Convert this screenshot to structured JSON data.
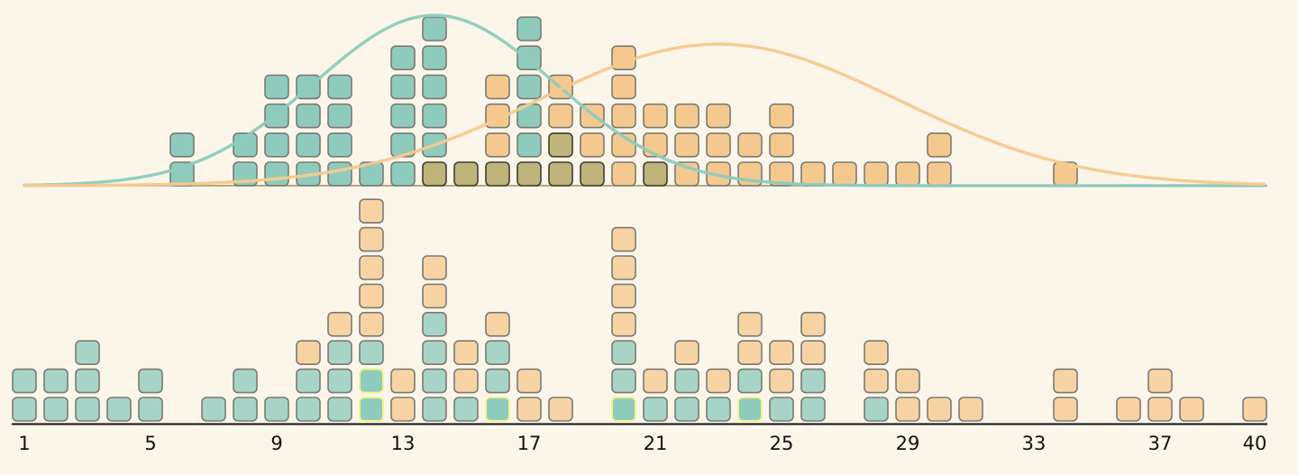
{
  "colors": {
    "background": "#fcf6ea",
    "teal": "#8ecbbd",
    "orange": "#f5c98e",
    "overlap": "#bfb57a",
    "teal_light": "#a7d4c6",
    "orange_light": "#f7d3a4",
    "highlight_stroke": "#f5f28c",
    "stroke": "#7a7a72",
    "overlap_stroke": "#3e3d33",
    "baseline_top": "#b4a87c",
    "axis": "#111111"
  },
  "chart_data": [
    {
      "type": "dot-histogram",
      "panel": "top",
      "x_range": [
        1,
        40
      ],
      "series": [
        {
          "color": "#8ecbbd",
          "counts": [
            [
              6,
              2
            ],
            [
              8,
              2
            ],
            [
              9,
              4
            ],
            [
              10,
              4
            ],
            [
              11,
              4
            ],
            [
              12,
              1
            ],
            [
              13,
              5
            ],
            [
              14,
              6
            ],
            [
              15,
              1
            ],
            [
              16,
              1
            ],
            [
              17,
              6
            ],
            [
              18,
              2
            ],
            [
              19,
              1
            ],
            [
              21,
              1
            ]
          ],
          "curve": {
            "mean": 14,
            "sd": 3.8
          }
        },
        {
          "color": "#f5c98e",
          "counts": [
            [
              14,
              1
            ],
            [
              15,
              1
            ],
            [
              16,
              4
            ],
            [
              17,
              1
            ],
            [
              18,
              4
            ],
            [
              19,
              3
            ],
            [
              20,
              5
            ],
            [
              21,
              3
            ],
            [
              22,
              3
            ],
            [
              23,
              3
            ],
            [
              24,
              2
            ],
            [
              25,
              3
            ],
            [
              26,
              1
            ],
            [
              27,
              1
            ],
            [
              28,
              1
            ],
            [
              29,
              1
            ],
            [
              30,
              2
            ],
            [
              34,
              1
            ]
          ],
          "curve": {
            "mean": 23,
            "sd": 5.7
          }
        }
      ]
    },
    {
      "type": "dot-histogram",
      "panel": "bottom",
      "x_range": [
        1,
        40
      ],
      "ticks": [
        1,
        5,
        9,
        13,
        17,
        21,
        25,
        29,
        33,
        37,
        40
      ],
      "columns": [
        [
          1,
          [
            "t",
            "t"
          ]
        ],
        [
          2,
          [
            "t",
            "t"
          ]
        ],
        [
          3,
          [
            "t",
            "t",
            "t"
          ]
        ],
        [
          4,
          [
            "t"
          ]
        ],
        [
          5,
          [
            "t",
            "t"
          ]
        ],
        [
          7,
          [
            "t"
          ]
        ],
        [
          8,
          [
            "t",
            "t"
          ]
        ],
        [
          9,
          [
            "t"
          ]
        ],
        [
          10,
          [
            "t",
            "t",
            "o"
          ]
        ],
        [
          11,
          [
            "t",
            "t",
            "t",
            "o"
          ]
        ],
        [
          12,
          [
            "T",
            "T",
            "t",
            "o",
            "o",
            "o",
            "o",
            "o"
          ]
        ],
        [
          13,
          [
            "o",
            "o"
          ]
        ],
        [
          14,
          [
            "t",
            "t",
            "t",
            "t",
            "o",
            "o"
          ]
        ],
        [
          15,
          [
            "t",
            "o",
            "o"
          ]
        ],
        [
          16,
          [
            "T",
            "t",
            "t",
            "o"
          ]
        ],
        [
          17,
          [
            "o",
            "o"
          ]
        ],
        [
          18,
          [
            "o"
          ]
        ],
        [
          20,
          [
            "T",
            "t",
            "t",
            "o",
            "o",
            "o",
            "o"
          ]
        ],
        [
          21,
          [
            "t",
            "o"
          ]
        ],
        [
          22,
          [
            "t",
            "t",
            "o"
          ]
        ],
        [
          23,
          [
            "t",
            "o"
          ]
        ],
        [
          24,
          [
            "T",
            "t",
            "o",
            "o"
          ]
        ],
        [
          25,
          [
            "t",
            "o",
            "o"
          ]
        ],
        [
          26,
          [
            "t",
            "t",
            "o",
            "o"
          ]
        ],
        [
          28,
          [
            "t",
            "o",
            "o"
          ]
        ],
        [
          29,
          [
            "o",
            "o"
          ]
        ],
        [
          30,
          [
            "o"
          ]
        ],
        [
          31,
          [
            "o"
          ]
        ],
        [
          34,
          [
            "o",
            "o"
          ]
        ],
        [
          36,
          [
            "o"
          ]
        ],
        [
          37,
          [
            "o",
            "o"
          ]
        ],
        [
          38,
          [
            "o"
          ]
        ],
        [
          40,
          [
            "o"
          ]
        ]
      ]
    }
  ]
}
